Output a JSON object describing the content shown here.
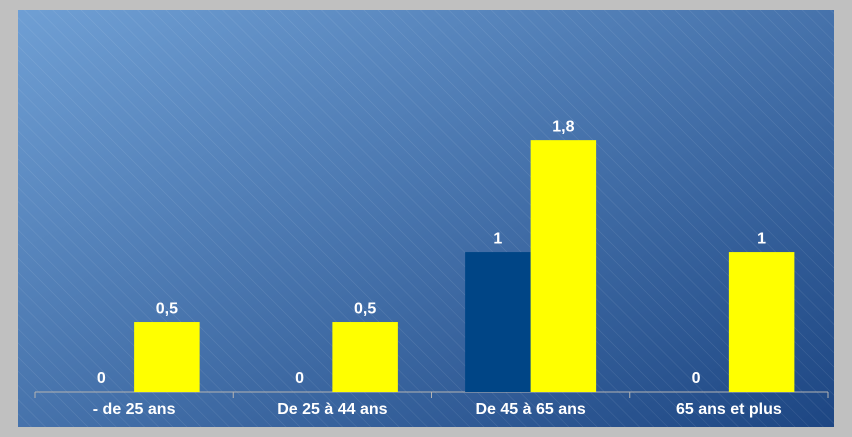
{
  "chart_data": {
    "type": "bar",
    "categories": [
      "- de 25 ans",
      "De 25 à 44 ans",
      "De 45 à 65 ans",
      "65 ans et plus"
    ],
    "series": [
      {
        "color": "#004586",
        "values": [
          0,
          0,
          1,
          0
        ],
        "value_labels": [
          "0",
          "0",
          "1",
          "0"
        ]
      },
      {
        "color": "#ffff00",
        "values": [
          0.5,
          0.5,
          1.8,
          1
        ],
        "value_labels": [
          "0,5",
          "0,5",
          "1,8",
          "1"
        ]
      }
    ],
    "ylim": [
      0,
      2.73
    ],
    "grid": false
  }
}
